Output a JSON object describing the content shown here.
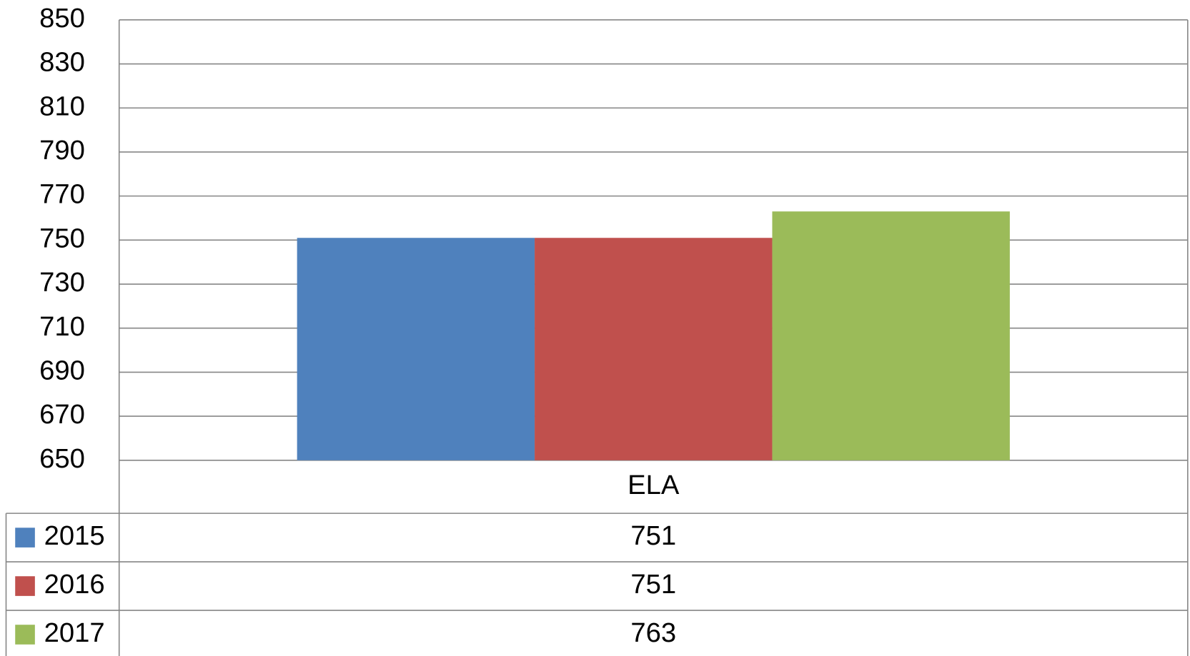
{
  "chart_data": {
    "type": "bar",
    "categories": [
      "ELA"
    ],
    "series": [
      {
        "name": "2015",
        "color": "#4f81bd",
        "values": [
          751
        ]
      },
      {
        "name": "2016",
        "color": "#c0504d",
        "values": [
          751
        ]
      },
      {
        "name": "2017",
        "color": "#9bbb59",
        "values": [
          763
        ]
      }
    ],
    "ylim": [
      650,
      850
    ],
    "yticks": [
      650,
      670,
      690,
      710,
      730,
      750,
      770,
      790,
      810,
      830,
      850
    ],
    "grid": true
  }
}
